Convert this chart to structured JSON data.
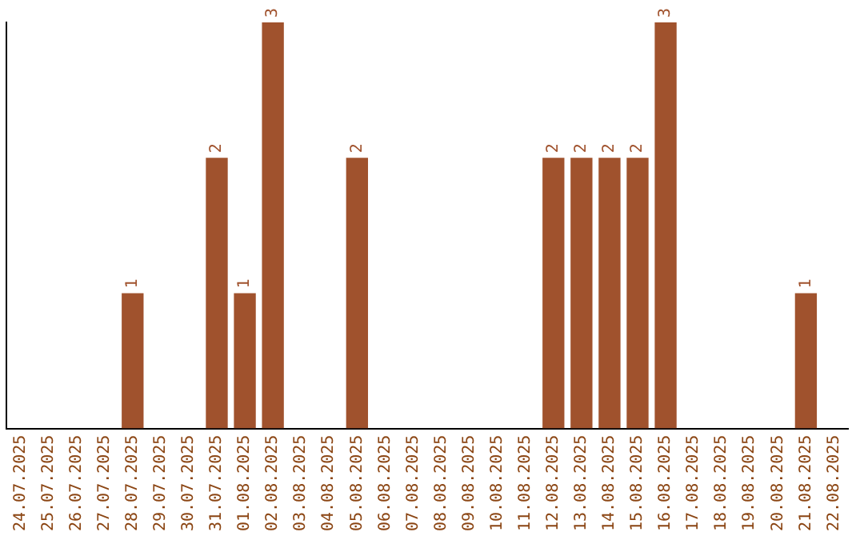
{
  "chart_data": {
    "type": "bar",
    "categories": [
      "24.07.2025",
      "25.07.2025",
      "26.07.2025",
      "27.07.2025",
      "28.07.2025",
      "29.07.2025",
      "30.07.2025",
      "31.07.2025",
      "01.08.2025",
      "02.08.2025",
      "03.08.2025",
      "04.08.2025",
      "05.08.2025",
      "06.08.2025",
      "07.08.2025",
      "08.08.2025",
      "09.08.2025",
      "10.08.2025",
      "11.08.2025",
      "12.08.2025",
      "13.08.2025",
      "14.08.2025",
      "15.08.2025",
      "16.08.2025",
      "17.08.2025",
      "18.08.2025",
      "19.08.2025",
      "20.08.2025",
      "21.08.2025",
      "22.08.2025"
    ],
    "values": [
      0,
      0,
      0,
      0,
      1,
      0,
      0,
      2,
      1,
      3,
      0,
      0,
      2,
      0,
      0,
      0,
      0,
      0,
      0,
      2,
      2,
      2,
      2,
      3,
      0,
      0,
      0,
      0,
      1,
      0
    ],
    "value_labels": [
      null,
      null,
      null,
      null,
      "1",
      null,
      null,
      "2",
      "1",
      "3",
      null,
      null,
      "2",
      null,
      null,
      null,
      null,
      null,
      null,
      "2",
      "2",
      "2",
      "2",
      "3",
      null,
      null,
      null,
      null,
      "1",
      null
    ],
    "color": "#a0522d",
    "tick_labels": "x",
    "grid": false,
    "legend": false
  }
}
